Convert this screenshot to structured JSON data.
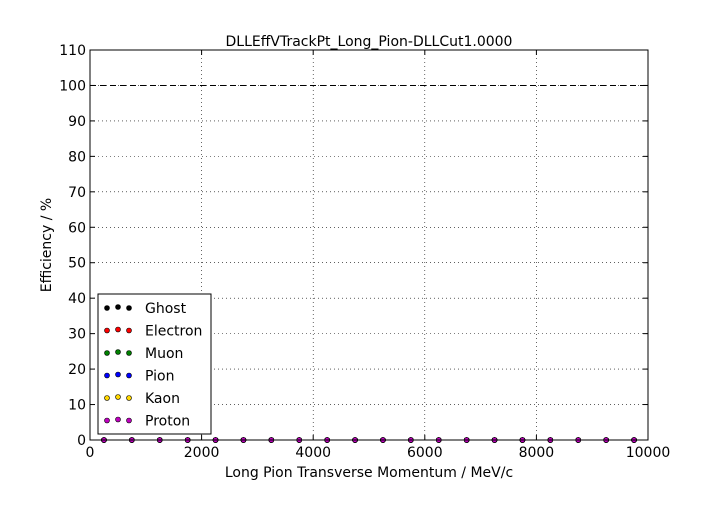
{
  "chart_data": {
    "type": "scatter",
    "title": "DLLEffVTrackPt_Long_Pion-DLLCut1.0000",
    "xlabel": "Long Pion Transverse Momentum / MeV/c",
    "ylabel": "Efficiency / %",
    "xlim": [
      0,
      10000
    ],
    "ylim": [
      0,
      110
    ],
    "xticks": [
      0,
      2000,
      4000,
      6000,
      8000,
      10000
    ],
    "yticks": [
      0,
      10,
      20,
      30,
      40,
      50,
      60,
      70,
      80,
      90,
      100,
      110
    ],
    "grid": true,
    "reference_line": {
      "y": 100,
      "style": "dashed"
    },
    "legend_position": "lower-left",
    "x": [
      250,
      750,
      1250,
      1750,
      2250,
      2750,
      3250,
      3750,
      4250,
      4750,
      5250,
      5750,
      6250,
      6750,
      7250,
      7750,
      8250,
      8750,
      9250,
      9750
    ],
    "series": [
      {
        "name": "Ghost",
        "color": "#000000",
        "values": [
          0,
          0,
          0,
          0,
          0,
          0,
          0,
          0,
          0,
          0,
          0,
          0,
          0,
          0,
          0,
          0,
          0,
          0,
          0,
          0
        ]
      },
      {
        "name": "Electron",
        "color": "#ff0000",
        "values": [
          0,
          0,
          0,
          0,
          0,
          0,
          0,
          0,
          0,
          0,
          0,
          0,
          0,
          0,
          0,
          0,
          0,
          0,
          0,
          0
        ]
      },
      {
        "name": "Muon",
        "color": "#008000",
        "values": [
          0,
          0,
          0,
          0,
          0,
          0,
          0,
          0,
          0,
          0,
          0,
          0,
          0,
          0,
          0,
          0,
          0,
          0,
          0,
          0
        ]
      },
      {
        "name": "Pion",
        "color": "#0000ff",
        "values": [
          0,
          0,
          0,
          0,
          0,
          0,
          0,
          0,
          0,
          0,
          0,
          0,
          0,
          0,
          0,
          0,
          0,
          0,
          0,
          0
        ]
      },
      {
        "name": "Kaon",
        "color": "#ffd700",
        "values": [
          0,
          0,
          0,
          0,
          0,
          0,
          0,
          0,
          0,
          0,
          0,
          0,
          0,
          0,
          0,
          0,
          0,
          0,
          0,
          0
        ]
      },
      {
        "name": "Proton",
        "color": "#c000c0",
        "values": [
          0,
          0,
          0,
          0,
          0,
          0,
          0,
          0,
          0,
          0,
          0,
          0,
          0,
          0,
          0,
          0,
          0,
          0,
          0,
          0
        ]
      }
    ]
  }
}
